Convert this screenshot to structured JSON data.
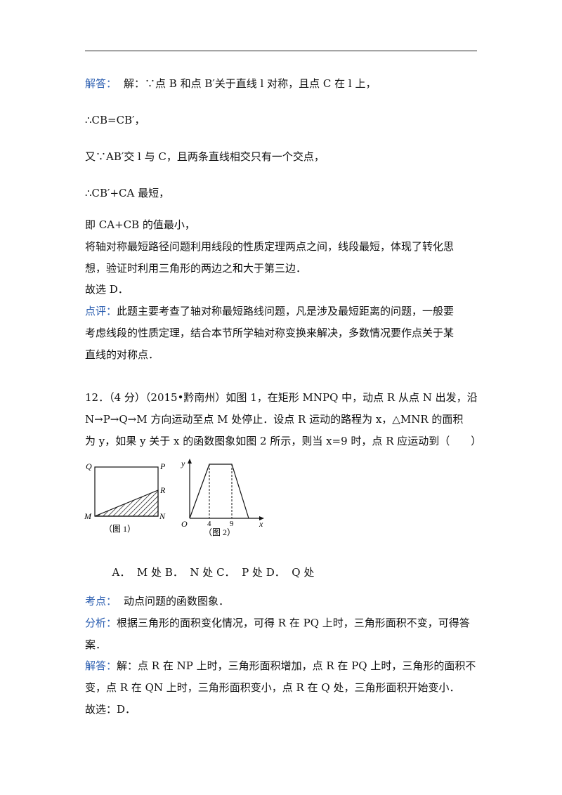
{
  "sol1": {
    "tag": "解答：",
    "l1": "解：∵点 B 和点 B′关于直线 l 对称，且点 C 在 l 上，",
    "l2": "∴CB=CB′，",
    "l3": "又∵AB′交 l 与 C，且两条直线相交只有一个交点，",
    "l4": "∴CB′+CA 最短，",
    "l5": "即 CA+CB 的值最小，",
    "l6": "将轴对称最短路径问题利用线段的性质定理两点之间，线段最短，体现了转化思",
    "l7": "想，验证时利用三角形的两边之和大于第三边．",
    "l8": "故选 D．"
  },
  "comment": {
    "tag": "点评：",
    "l1": "此题主要考查了轴对称最短路线问题，凡是涉及最短距离的问题，一般要",
    "l2": "考虑线段的性质定理，结合本节所学轴对称变换来解决，多数情况要作点关于某",
    "l3": "直线的对称点．"
  },
  "q12": {
    "l1": "12．（4 分）（2015•黔南州）如图 1，在矩形 MNPQ 中，动点 R 从点 N 出发，沿",
    "l2": "N→P→Q→M 方向运动至点 M 处停止．设点 R 运动的路程为 x，△MNR 的面积",
    "l3": "为 y，如果 y 关于 x 的函数图象如图 2 所示，则当 x=9 时，点 R 应运动到（　　）"
  },
  "fig1": {
    "Q": "Q",
    "P": "P",
    "R": "R",
    "M": "M",
    "N": "N",
    "caption": "（图 1）"
  },
  "fig2": {
    "y": "y",
    "x": "x",
    "O": "O",
    "t4": "4",
    "t9": "9",
    "caption": "（图 2）"
  },
  "options": {
    "a": "A．  M 处",
    "b": "B．  N 处",
    "c": "C．  P 处",
    "d": "D．  Q 处"
  },
  "analysis": {
    "kd_tag": "考点：",
    "kd": "动点问题的函数图象．",
    "fx_tag": "分析：",
    "fx1": "根据三角形的面积变化情况，可得 R 在 PQ 上时，三角形面积不变，可得答",
    "fx2": "案．",
    "jd_tag": "解答：",
    "jd1": "解：点 R 在 NP 上时，三角形面积增加，点 R 在 PQ 上时，三角形的面积不",
    "jd2": "变，点 R 在 QN 上时，三角形面积变小，点 R 在 Q 处，三角形面积开始变小．",
    "jd3": "故选：D．"
  }
}
